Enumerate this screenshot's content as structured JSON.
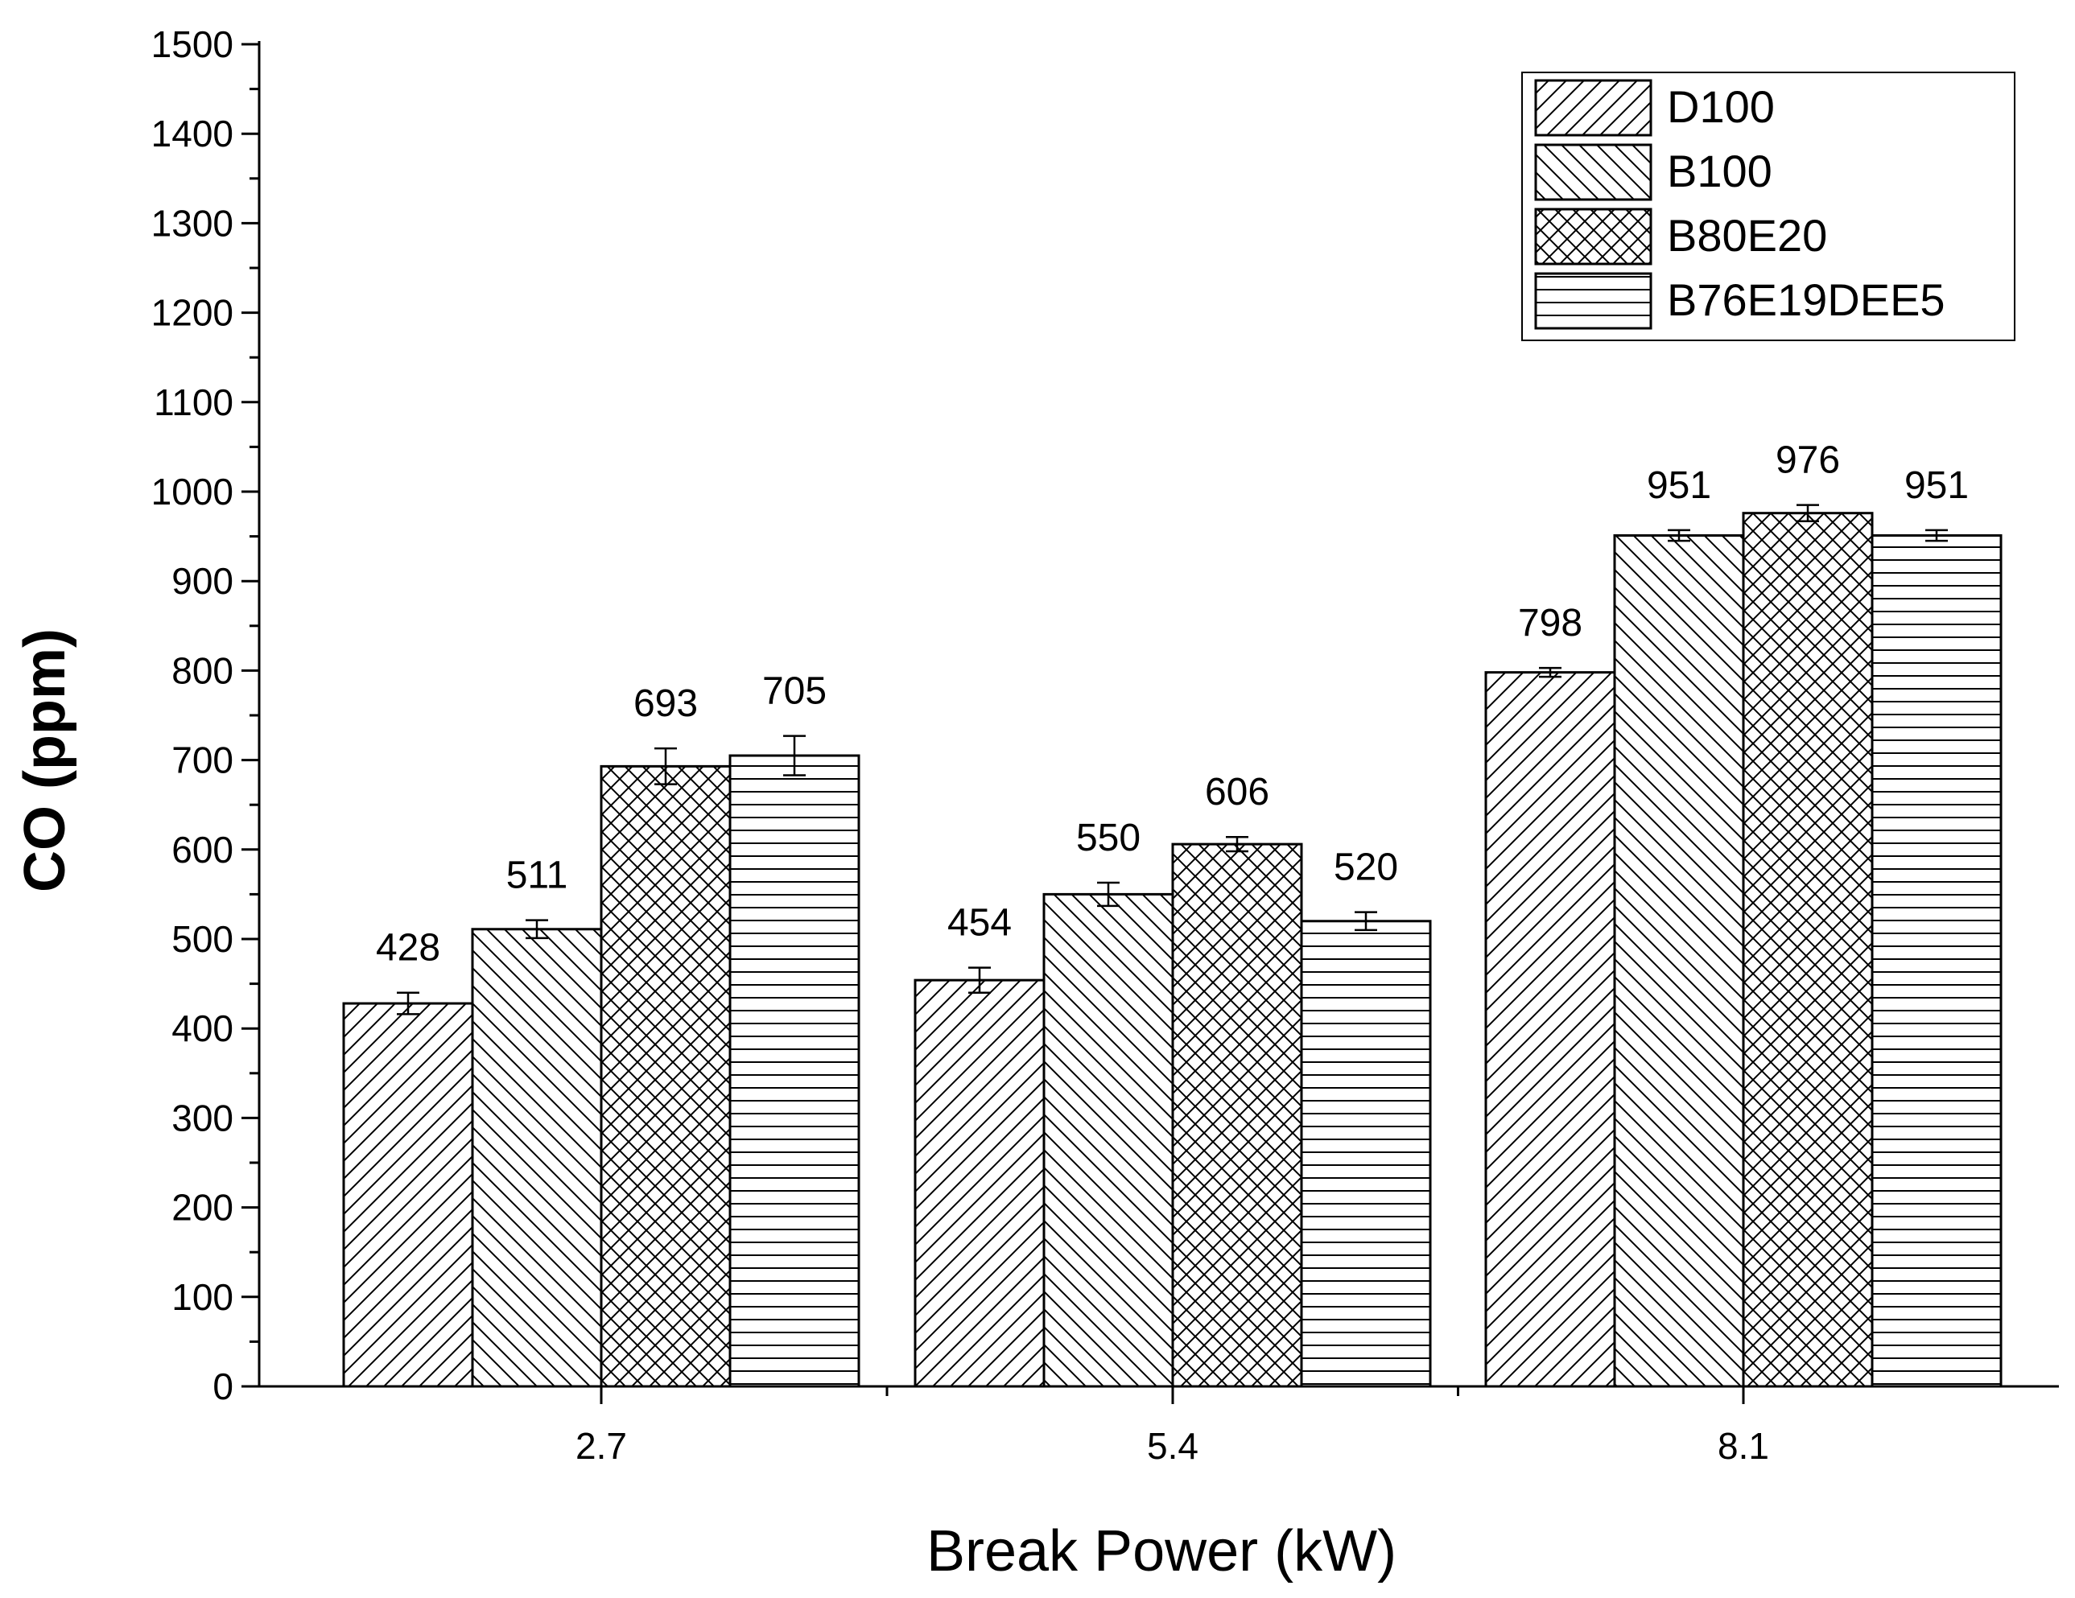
{
  "chart_data": {
    "type": "bar",
    "title": "",
    "xlabel": "Break Power (kW)",
    "ylabel": "CO (ppm)",
    "categories": [
      "2.7",
      "5.4",
      "8.1"
    ],
    "ylim": [
      0,
      1500
    ],
    "yticks": [
      "0",
      "100",
      "200",
      "300",
      "400",
      "500",
      "600",
      "700",
      "800",
      "900",
      "1000",
      "1100",
      "1200",
      "1300",
      "1400",
      "1500"
    ],
    "grid": false,
    "legend_position": "top-right",
    "series": [
      {
        "name": "D100",
        "pattern": "diag-right",
        "values": [
          428,
          454,
          798
        ],
        "errors": [
          12,
          14,
          5
        ]
      },
      {
        "name": "B100",
        "pattern": "diag-left",
        "values": [
          511,
          550,
          951
        ],
        "errors": [
          10,
          13,
          6
        ]
      },
      {
        "name": "B80E20",
        "pattern": "crosshatch",
        "values": [
          693,
          606,
          976
        ],
        "errors": [
          20,
          8,
          9
        ]
      },
      {
        "name": "B76E19DEE5",
        "pattern": "horizontal",
        "values": [
          705,
          520,
          951
        ],
        "errors": [
          22,
          10,
          6
        ]
      }
    ],
    "data_labels": [
      [
        "428",
        "454",
        "798"
      ],
      [
        "511",
        "550",
        "951"
      ],
      [
        "693",
        "606",
        "976"
      ],
      [
        "705",
        "520",
        "951"
      ]
    ],
    "colors": {
      "stroke": "#000000",
      "fill": "#ffffff"
    }
  }
}
